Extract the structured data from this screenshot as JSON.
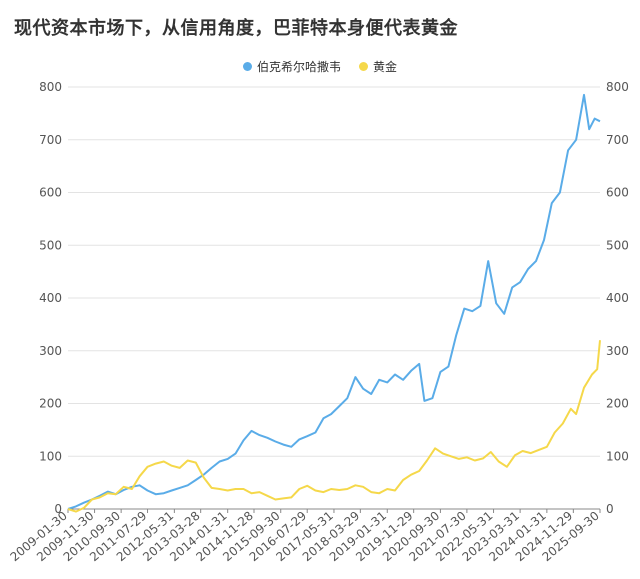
{
  "chart_data": {
    "type": "line",
    "title": "现代资本市场下，从信用角度，巴菲特本身便代表黄金",
    "legend_position": "top-center",
    "grid": true,
    "ylim": [
      0,
      800
    ],
    "yticks": [
      0,
      100,
      200,
      300,
      400,
      500,
      600,
      700,
      800
    ],
    "xlim": [
      "2009-01-30",
      "2025-09-30"
    ],
    "x_tick_labels": [
      "2009-01-30",
      "2009-11-30",
      "2010-09-30",
      "2011-07-29",
      "2012-05-31",
      "2013-03-28",
      "2014-01-31",
      "2014-11-28",
      "2015-09-30",
      "2016-07-29",
      "2017-05-31",
      "2018-03-29",
      "2019-01-31",
      "2019-11-29",
      "2020-09-30",
      "2021-07-30",
      "2022-05-31",
      "2023-03-31",
      "2024-01-31",
      "2024-11-29",
      "2025-09-30"
    ],
    "series": [
      {
        "name": "伯克希尔哈撒韦",
        "color": "#5aace8",
        "points": [
          [
            "2009-01-30",
            0
          ],
          [
            "2009-04-30",
            5
          ],
          [
            "2009-07-31",
            12
          ],
          [
            "2009-10-30",
            18
          ],
          [
            "2010-01-29",
            25
          ],
          [
            "2010-04-30",
            33
          ],
          [
            "2010-07-30",
            28
          ],
          [
            "2010-10-29",
            36
          ],
          [
            "2011-01-31",
            42
          ],
          [
            "2011-04-29",
            45
          ],
          [
            "2011-07-29",
            35
          ],
          [
            "2011-10-31",
            28
          ],
          [
            "2012-01-31",
            30
          ],
          [
            "2012-04-30",
            35
          ],
          [
            "2012-07-31",
            40
          ],
          [
            "2012-10-31",
            45
          ],
          [
            "2013-01-31",
            55
          ],
          [
            "2013-04-30",
            65
          ],
          [
            "2013-07-31",
            78
          ],
          [
            "2013-10-31",
            90
          ],
          [
            "2014-01-31",
            95
          ],
          [
            "2014-04-30",
            105
          ],
          [
            "2014-07-31",
            130
          ],
          [
            "2014-10-31",
            148
          ],
          [
            "2015-01-30",
            140
          ],
          [
            "2015-04-30",
            135
          ],
          [
            "2015-07-31",
            128
          ],
          [
            "2015-10-30",
            122
          ],
          [
            "2016-01-29",
            118
          ],
          [
            "2016-04-29",
            132
          ],
          [
            "2016-07-29",
            138
          ],
          [
            "2016-10-31",
            145
          ],
          [
            "2017-01-31",
            172
          ],
          [
            "2017-04-28",
            180
          ],
          [
            "2017-07-31",
            195
          ],
          [
            "2017-10-31",
            210
          ],
          [
            "2018-01-31",
            250
          ],
          [
            "2018-04-30",
            228
          ],
          [
            "2018-07-31",
            218
          ],
          [
            "2018-10-31",
            245
          ],
          [
            "2019-01-31",
            240
          ],
          [
            "2019-04-30",
            255
          ],
          [
            "2019-07-31",
            245
          ],
          [
            "2019-10-31",
            262
          ],
          [
            "2020-01-31",
            275
          ],
          [
            "2020-03-31",
            205
          ],
          [
            "2020-06-30",
            210
          ],
          [
            "2020-09-30",
            260
          ],
          [
            "2020-12-31",
            270
          ],
          [
            "2021-03-31",
            330
          ],
          [
            "2021-06-30",
            380
          ],
          [
            "2021-09-30",
            375
          ],
          [
            "2021-12-31",
            385
          ],
          [
            "2022-03-31",
            470
          ],
          [
            "2022-06-30",
            390
          ],
          [
            "2022-09-30",
            370
          ],
          [
            "2022-12-30",
            420
          ],
          [
            "2023-03-31",
            430
          ],
          [
            "2023-06-30",
            455
          ],
          [
            "2023-09-29",
            470
          ],
          [
            "2023-12-29",
            510
          ],
          [
            "2024-03-28",
            580
          ],
          [
            "2024-06-28",
            600
          ],
          [
            "2024-09-30",
            680
          ],
          [
            "2024-12-31",
            700
          ],
          [
            "2025-03-31",
            785
          ],
          [
            "2025-05-30",
            720
          ],
          [
            "2025-07-31",
            740
          ],
          [
            "2025-09-30",
            735
          ]
        ]
      },
      {
        "name": "黄金",
        "color": "#f5d84a",
        "points": [
          [
            "2009-01-30",
            0
          ],
          [
            "2009-04-30",
            -5
          ],
          [
            "2009-07-31",
            2
          ],
          [
            "2009-10-30",
            18
          ],
          [
            "2010-01-29",
            22
          ],
          [
            "2010-04-30",
            30
          ],
          [
            "2010-07-30",
            28
          ],
          [
            "2010-10-29",
            42
          ],
          [
            "2011-01-31",
            38
          ],
          [
            "2011-04-29",
            62
          ],
          [
            "2011-07-29",
            80
          ],
          [
            "2011-10-31",
            86
          ],
          [
            "2012-01-31",
            90
          ],
          [
            "2012-04-30",
            82
          ],
          [
            "2012-07-31",
            78
          ],
          [
            "2012-10-31",
            92
          ],
          [
            "2013-01-31",
            88
          ],
          [
            "2013-04-30",
            60
          ],
          [
            "2013-07-31",
            40
          ],
          [
            "2013-10-31",
            38
          ],
          [
            "2014-01-31",
            35
          ],
          [
            "2014-04-30",
            38
          ],
          [
            "2014-07-31",
            38
          ],
          [
            "2014-10-31",
            30
          ],
          [
            "2015-01-30",
            32
          ],
          [
            "2015-04-30",
            25
          ],
          [
            "2015-07-31",
            18
          ],
          [
            "2015-10-30",
            20
          ],
          [
            "2016-01-29",
            22
          ],
          [
            "2016-04-29",
            38
          ],
          [
            "2016-07-29",
            44
          ],
          [
            "2016-10-31",
            35
          ],
          [
            "2017-01-31",
            32
          ],
          [
            "2017-04-28",
            38
          ],
          [
            "2017-07-31",
            36
          ],
          [
            "2017-10-31",
            38
          ],
          [
            "2018-01-31",
            45
          ],
          [
            "2018-04-30",
            42
          ],
          [
            "2018-07-31",
            32
          ],
          [
            "2018-10-31",
            30
          ],
          [
            "2019-01-31",
            38
          ],
          [
            "2019-04-30",
            35
          ],
          [
            "2019-07-31",
            55
          ],
          [
            "2019-10-31",
            65
          ],
          [
            "2020-01-31",
            72
          ],
          [
            "2020-04-30",
            92
          ],
          [
            "2020-07-31",
            115
          ],
          [
            "2020-10-30",
            105
          ],
          [
            "2021-01-29",
            100
          ],
          [
            "2021-04-30",
            95
          ],
          [
            "2021-07-30",
            98
          ],
          [
            "2021-10-29",
            92
          ],
          [
            "2022-01-31",
            96
          ],
          [
            "2022-04-29",
            108
          ],
          [
            "2022-07-29",
            90
          ],
          [
            "2022-10-31",
            80
          ],
          [
            "2023-01-31",
            102
          ],
          [
            "2023-04-28",
            110
          ],
          [
            "2023-07-31",
            106
          ],
          [
            "2023-10-31",
            112
          ],
          [
            "2024-01-31",
            118
          ],
          [
            "2024-04-30",
            145
          ],
          [
            "2024-07-31",
            162
          ],
          [
            "2024-10-31",
            190
          ],
          [
            "2024-12-31",
            180
          ],
          [
            "2025-03-31",
            230
          ],
          [
            "2025-06-30",
            255
          ],
          [
            "2025-08-29",
            265
          ],
          [
            "2025-09-30",
            320
          ]
        ]
      }
    ]
  }
}
